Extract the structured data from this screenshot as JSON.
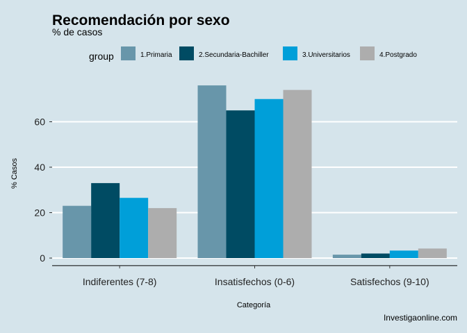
{
  "chart_data": {
    "type": "bar",
    "title": "Recomendación por sexo",
    "subtitle": "% de casos",
    "xlabel": "Categoría",
    "ylabel": "% Casos",
    "caption": "Investigaonline.com",
    "legend_title": "group",
    "legend_position": "top",
    "categories": [
      "Indiferentes (7-8)",
      "Insatisfechos (0-6)",
      "Satisfechos (9-10)"
    ],
    "ylim": [
      -3,
      78
    ],
    "yticks": [
      0,
      20,
      40,
      60
    ],
    "grid": "horizontal",
    "series": [
      {
        "name": "1.Primaria",
        "color": "#6896aa",
        "values": [
          23,
          76,
          1.5
        ]
      },
      {
        "name": "2.Secundaria-Bachiller",
        "color": "#004b63",
        "values": [
          33,
          65,
          2
        ]
      },
      {
        "name": "3.Universitarios",
        "color": "#009fd9",
        "values": [
          26.5,
          70,
          3.3
        ]
      },
      {
        "name": "4.Postgrado",
        "color": "#adadad",
        "values": [
          22,
          74,
          4.2
        ]
      }
    ]
  }
}
